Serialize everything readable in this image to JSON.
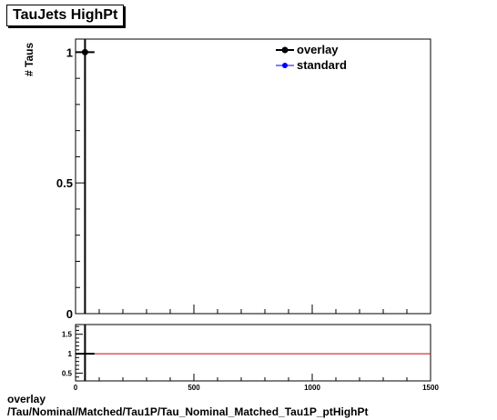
{
  "title": "TauJets HighPt",
  "caption": {
    "line1": "overlay",
    "line2": "/Tau/Nominal/Matched/Tau1P/Tau_Nominal_Matched_Tau1P_ptHighPt"
  },
  "colors": {
    "overlay": "#000000",
    "standard": "#0000ff",
    "ratio_line": "#cc0000"
  },
  "chart_data": [
    {
      "type": "line",
      "ylabel": "# Taus",
      "xlim": [
        0,
        1500
      ],
      "ylim": [
        0,
        1.05
      ],
      "yticks": [
        0,
        0.5,
        1
      ],
      "ytick_labels": [
        "0",
        "0.5",
        "1"
      ],
      "series": [
        {
          "name": "overlay",
          "x": [
            40
          ],
          "y": [
            1
          ]
        },
        {
          "name": "standard",
          "x": [
            40
          ],
          "y": [
            1
          ]
        }
      ],
      "legend": {
        "position": "top-right",
        "entries": [
          "overlay",
          "standard"
        ]
      }
    },
    {
      "type": "line",
      "xlim": [
        0,
        1500
      ],
      "ylim": [
        0.3,
        1.75
      ],
      "yticks": [
        0.5,
        1,
        1.5
      ],
      "ytick_labels": [
        "0.5",
        "1",
        "1.5"
      ],
      "xticks": [
        0,
        500,
        1000,
        1500
      ],
      "xtick_labels": [
        "0",
        "500",
        "1000",
        "1500"
      ],
      "reference_value": 1,
      "series": [
        {
          "x": [
            40
          ],
          "y": [
            1
          ]
        }
      ]
    }
  ]
}
